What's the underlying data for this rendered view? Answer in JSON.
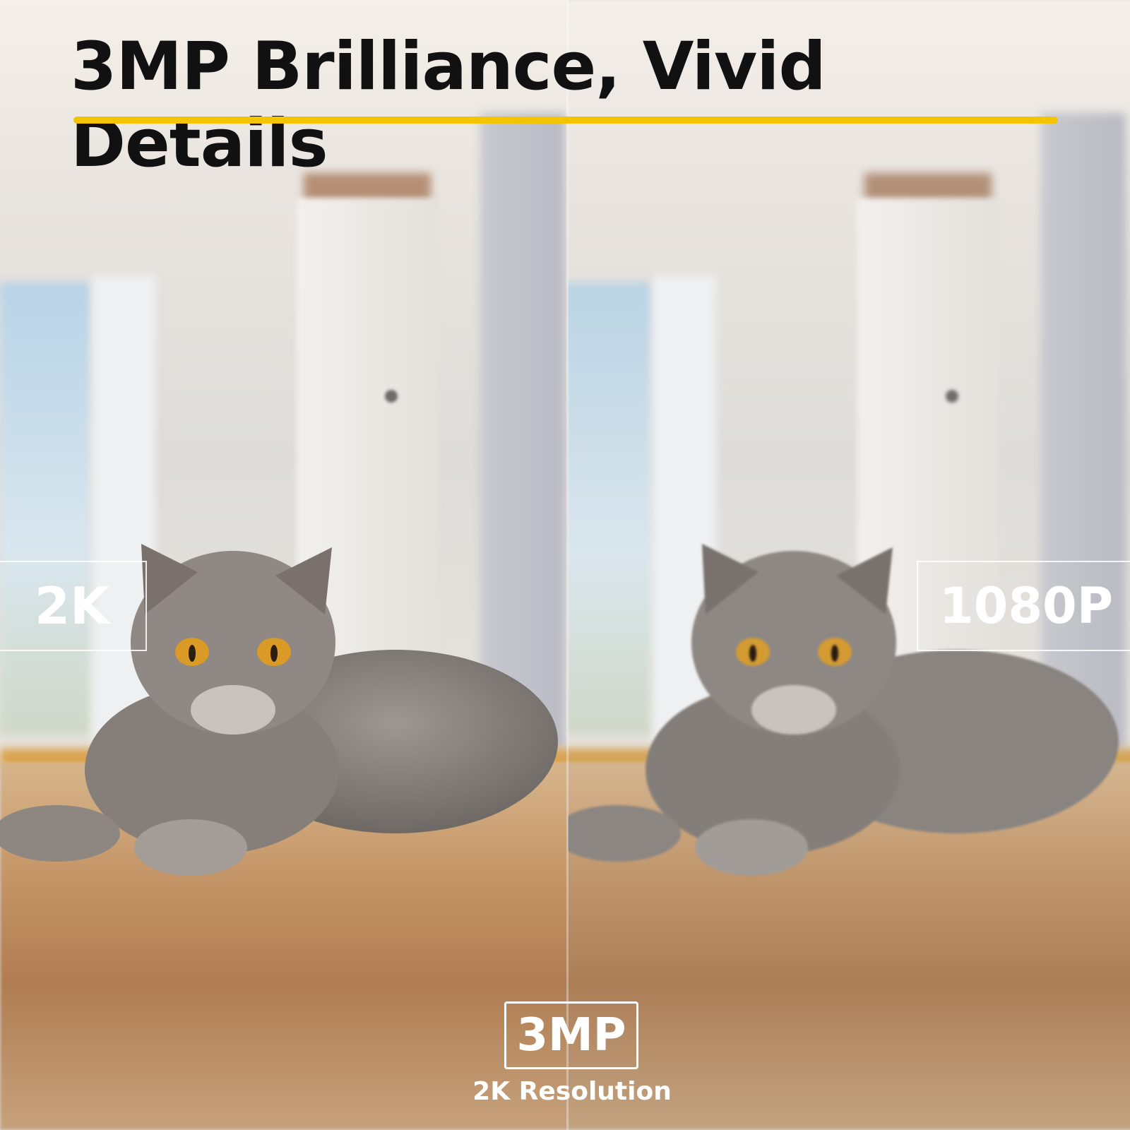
{
  "headline": "3MP Brilliance, Vivid Details",
  "accent_color": "#f5c400",
  "left_panel": {
    "label": "2K"
  },
  "right_panel": {
    "label": "1080P"
  },
  "badge": {
    "title": "3MP",
    "subtitle": "2K Resolution"
  }
}
